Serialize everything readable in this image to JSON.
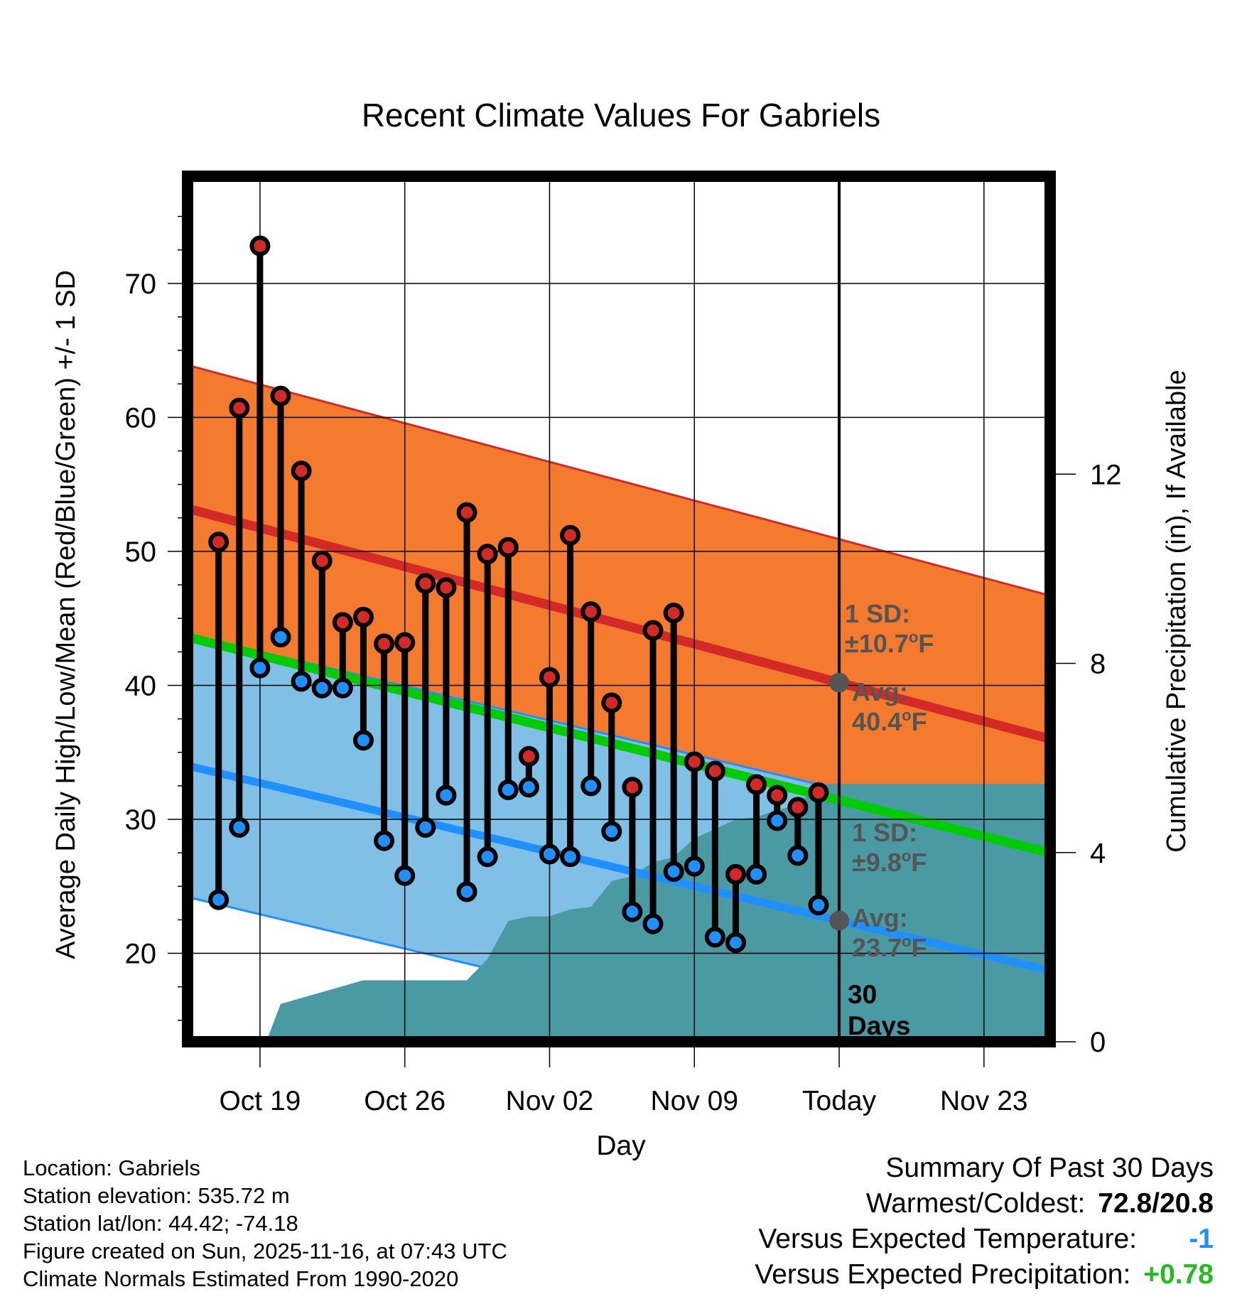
{
  "chart_data": {
    "type": "line",
    "title": "Recent Climate Values For Gabriels",
    "xlabel": "Day",
    "ylabel_left": "Average Daily High/Low/Mean (Red/Blue/Green) +/- 1 SD",
    "ylabel_right": "Cumulative Precipitation (in), If Available",
    "x_range": [
      -3.5,
      38.2
    ],
    "x_ticks": [
      {
        "day": 0,
        "label": "Oct 19"
      },
      {
        "day": 7,
        "label": "Oct 26"
      },
      {
        "day": 14,
        "label": "Nov 02"
      },
      {
        "day": 21,
        "label": "Nov 09"
      },
      {
        "day": 28,
        "label": "Today"
      },
      {
        "day": 35,
        "label": "Nov 23"
      }
    ],
    "y_left_range": [
      13.4,
      78.0
    ],
    "y_left_ticks": [
      20,
      30,
      40,
      50,
      60,
      70
    ],
    "y_right_range": [
      0,
      18.3
    ],
    "y_right_ticks": [
      0,
      4,
      8,
      12
    ],
    "grid": true,
    "today_day": 28,
    "today_label": [
      "30",
      "Days"
    ],
    "days": [
      -2,
      -1,
      0,
      1,
      2,
      3,
      4,
      5,
      6,
      7,
      8,
      9,
      10,
      11,
      12,
      13,
      14,
      15,
      16,
      17,
      18,
      19,
      20,
      21,
      22,
      23,
      24,
      25,
      26,
      27
    ],
    "highs": [
      50.7,
      60.7,
      72.8,
      61.6,
      56.0,
      49.3,
      44.7,
      45.1,
      43.1,
      43.2,
      47.6,
      47.3,
      52.9,
      49.8,
      50.3,
      34.7,
      40.6,
      51.2,
      45.5,
      38.7,
      32.4,
      44.1,
      45.4,
      34.3,
      33.6,
      25.9,
      32.6,
      31.8,
      30.9,
      32.0
    ],
    "lows": [
      24.0,
      29.4,
      41.3,
      43.6,
      40.3,
      39.8,
      39.8,
      35.9,
      28.4,
      25.8,
      29.4,
      31.8,
      24.6,
      27.2,
      32.2,
      32.4,
      27.4,
      27.2,
      32.5,
      29.1,
      23.1,
      22.2,
      26.1,
      26.5,
      21.2,
      20.8,
      25.9,
      29.9,
      27.3,
      23.6
    ],
    "normal_high": {
      "start": [
        -3.5,
        53.2
      ],
      "end": [
        38.2,
        36.0
      ],
      "sd": 10.7
    },
    "normal_low": {
      "start": [
        -3.5,
        34.0
      ],
      "end": [
        38.2,
        18.7
      ],
      "sd": 9.8
    },
    "normal_mean": {
      "start": [
        -3.5,
        43.6
      ],
      "end": [
        38.2,
        27.5
      ]
    },
    "precip_cumulative": [
      [
        0.3,
        0
      ],
      [
        1.0,
        0.8
      ],
      [
        3.0,
        1.05
      ],
      [
        5.0,
        1.3
      ],
      [
        10.0,
        1.3
      ],
      [
        11.0,
        1.75
      ],
      [
        12.0,
        2.55
      ],
      [
        13.0,
        2.65
      ],
      [
        14.0,
        2.65
      ],
      [
        15.0,
        2.8
      ],
      [
        16.0,
        2.85
      ],
      [
        17.0,
        3.4
      ],
      [
        18.0,
        3.5
      ],
      [
        19.0,
        3.8
      ],
      [
        20.0,
        3.9
      ],
      [
        21.0,
        4.3
      ],
      [
        22.0,
        4.5
      ],
      [
        23.0,
        4.7
      ],
      [
        24.0,
        4.75
      ],
      [
        25.0,
        4.9
      ],
      [
        26.0,
        5.0
      ],
      [
        27.0,
        5.45
      ],
      [
        38.2,
        5.45
      ]
    ],
    "annotations": {
      "high_sd": [
        "1 SD:",
        "±10.7",
        "o",
        "F"
      ],
      "high_avg": [
        "Avg:",
        "40.4",
        "o",
        "F"
      ],
      "low_sd": [
        "1 SD:",
        "±9.8",
        "o",
        "F"
      ],
      "low_avg": [
        "Avg:",
        "23.7",
        "o",
        "F"
      ]
    }
  },
  "location": {
    "lines": [
      "Location: Gabriels",
      "Station elevation: 535.72 m",
      "Station lat/lon: 44.42; -74.18",
      "Figure created on Sun, 2025-11-16, at 07:43 UTC",
      "Climate Normals Estimated From 1990-2020"
    ]
  },
  "summary": {
    "title": "Summary Of Past 30 Days",
    "warmest_label": "Warmest/Coldest:",
    "warmest_value": "72.8/20.8",
    "temp_label": "Versus Expected Temperature:",
    "temp_value": "-1",
    "precip_label": "Versus Expected Precipitation:",
    "precip_value": "+0.78"
  },
  "colors": {
    "high_band": "#f47a2e",
    "high_line": "#d42a27",
    "low_band": "#80bfe6",
    "low_line": "#1e90ff",
    "mean_line": "#00cc00",
    "overlap_band": "#9a1416",
    "precip": "#4a9aa3",
    "annotation": "#555555",
    "high_dot": "#d42a27",
    "low_dot": "#1e90ff",
    "temp_value": "#1e90ff",
    "precip_value": "#22bb22"
  }
}
